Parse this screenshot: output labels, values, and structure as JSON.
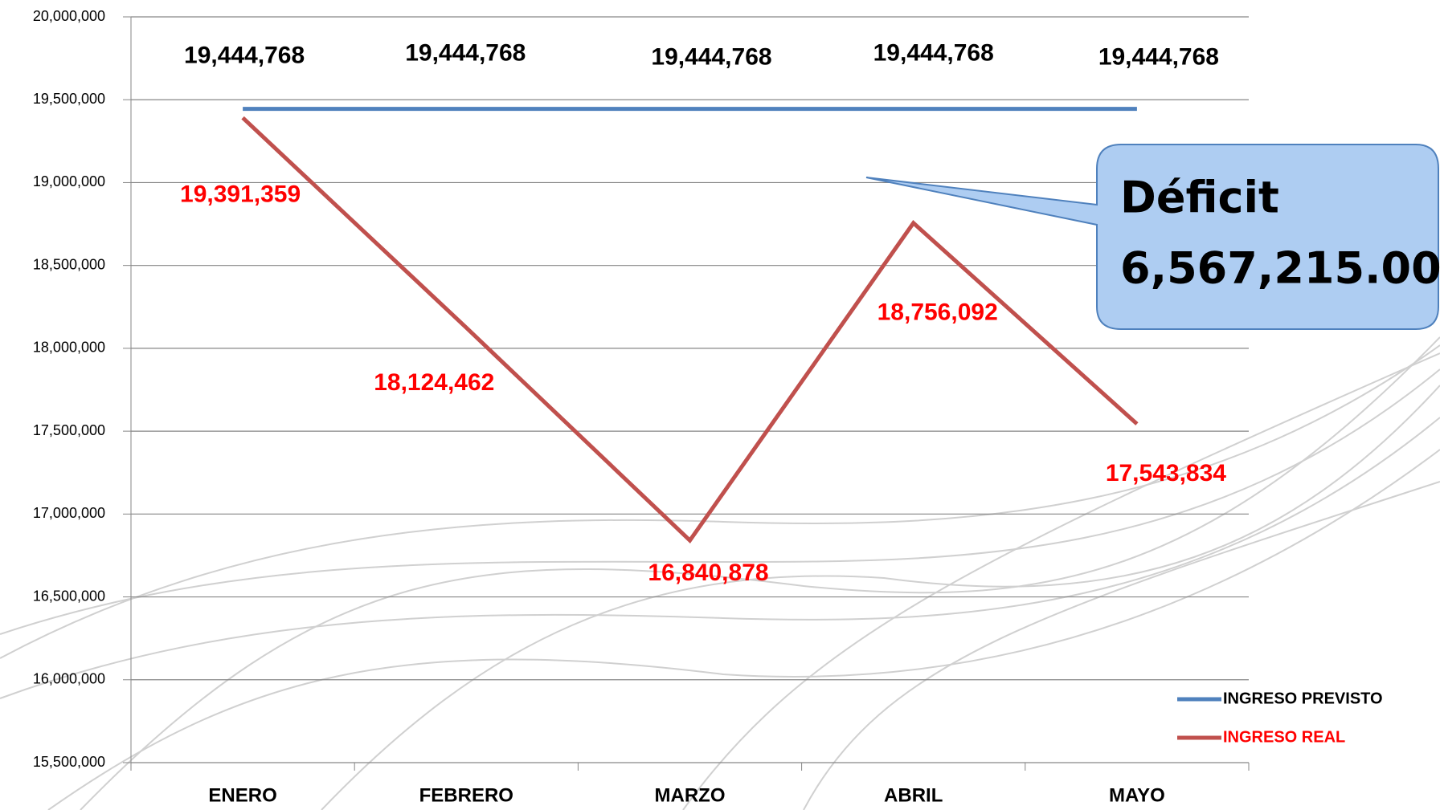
{
  "chart_data": {
    "type": "line",
    "categories": [
      "ENERO",
      "FEBRERO",
      "MARZO",
      "ABRIL",
      "MAYO"
    ],
    "series": [
      {
        "name": "INGRESO PREVISTO",
        "color": "#4f81bd",
        "values": [
          19444768,
          19444768,
          19444768,
          19444768,
          19444768
        ],
        "value_labels": [
          "19,444,768",
          "19,444,768",
          "19,444,768",
          "19,444,768",
          "19,444,768"
        ]
      },
      {
        "name": "INGRESO REAL",
        "color": "#c0504d",
        "values": [
          19391359,
          18124462,
          16840878,
          18756092,
          17543834
        ],
        "value_labels": [
          "19,391,359",
          "18,124,462",
          "16,840,878",
          "18,756,092",
          "17,543,834"
        ]
      }
    ],
    "ylim": [
      15500000,
      20000000
    ],
    "yticks": [
      {
        "value": 15500000,
        "label": "15,500,000"
      },
      {
        "value": 16000000,
        "label": "16,000,000"
      },
      {
        "value": 16500000,
        "label": "16,500,000"
      },
      {
        "value": 17000000,
        "label": "17,000,000"
      },
      {
        "value": 17500000,
        "label": "17,500,000"
      },
      {
        "value": 18000000,
        "label": "18,000,000"
      },
      {
        "value": 18500000,
        "label": "18,500,000"
      },
      {
        "value": 19000000,
        "label": "19,000,000"
      },
      {
        "value": 19500000,
        "label": "19,500,000"
      },
      {
        "value": 20000000,
        "label": "20,000,000"
      }
    ],
    "grid": true,
    "legend": "bottom-right",
    "annotation": {
      "title": "Déficit",
      "value": "6,567,215.00"
    }
  }
}
